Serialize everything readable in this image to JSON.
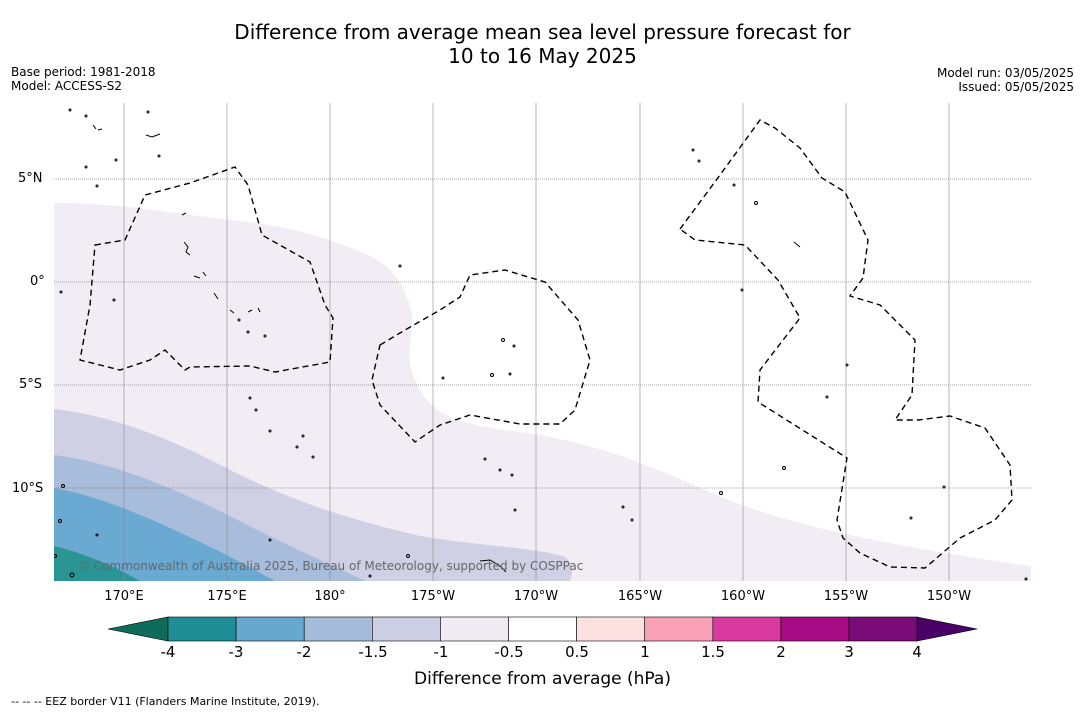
{
  "title": {
    "line1": "Difference from average mean sea level pressure forecast for",
    "line2": "10 to 16 May 2025"
  },
  "meta": {
    "base_period": "Base period: 1981-2018",
    "model": "Model: ACCESS-S2",
    "model_run": "Model run: 03/05/2025",
    "issued": "Issued: 05/05/2025"
  },
  "map": {
    "lat_labels": [
      "5°N",
      "0°",
      "5°S",
      "10°S"
    ],
    "lon_labels": [
      "170°E",
      "175°E",
      "180°",
      "175°W",
      "170°W",
      "165°W",
      "160°W",
      "155°W",
      "150°W"
    ],
    "copyright": "© Commonwealth of Australia 2025, Bureau of Meteorology, supported by COSPPac"
  },
  "colorbar": {
    "tick_labels": [
      "-4",
      "-3",
      "-2",
      "-1.5",
      "-1",
      "-0.5",
      "0.5",
      "1",
      "1.5",
      "2",
      "3",
      "4"
    ],
    "colors": [
      "#0f6b5a",
      "#1f8e96",
      "#66a8d0",
      "#a6bcdc",
      "#cccfe4",
      "#f0ebf3",
      "#ffffff",
      "#fde0e0",
      "#f9a0b6",
      "#da3aa0",
      "#a70a84",
      "#7b0a79",
      "#4b0068"
    ],
    "title": "Difference from average (hPa)"
  },
  "footer": "--  --  -- EEZ border V11 (Flanders Marine Institute, 2019)."
}
